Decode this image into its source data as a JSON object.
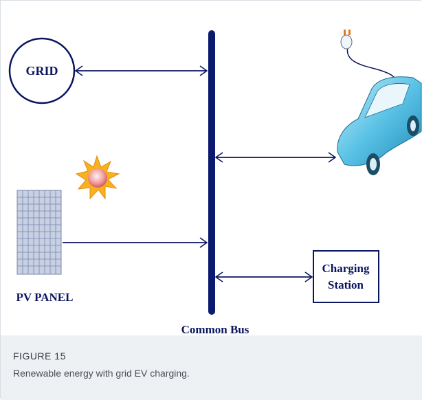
{
  "diagram": {
    "nodes": [
      {
        "label": "GRID"
      },
      {
        "label": "PV PANEL"
      },
      {
        "label_lines": [
          "Charging",
          "Station"
        ]
      }
    ],
    "bus_label": "Common Bus"
  },
  "caption": {
    "label": "FIGURE 15",
    "text": "Renewable energy with grid EV charging."
  }
}
